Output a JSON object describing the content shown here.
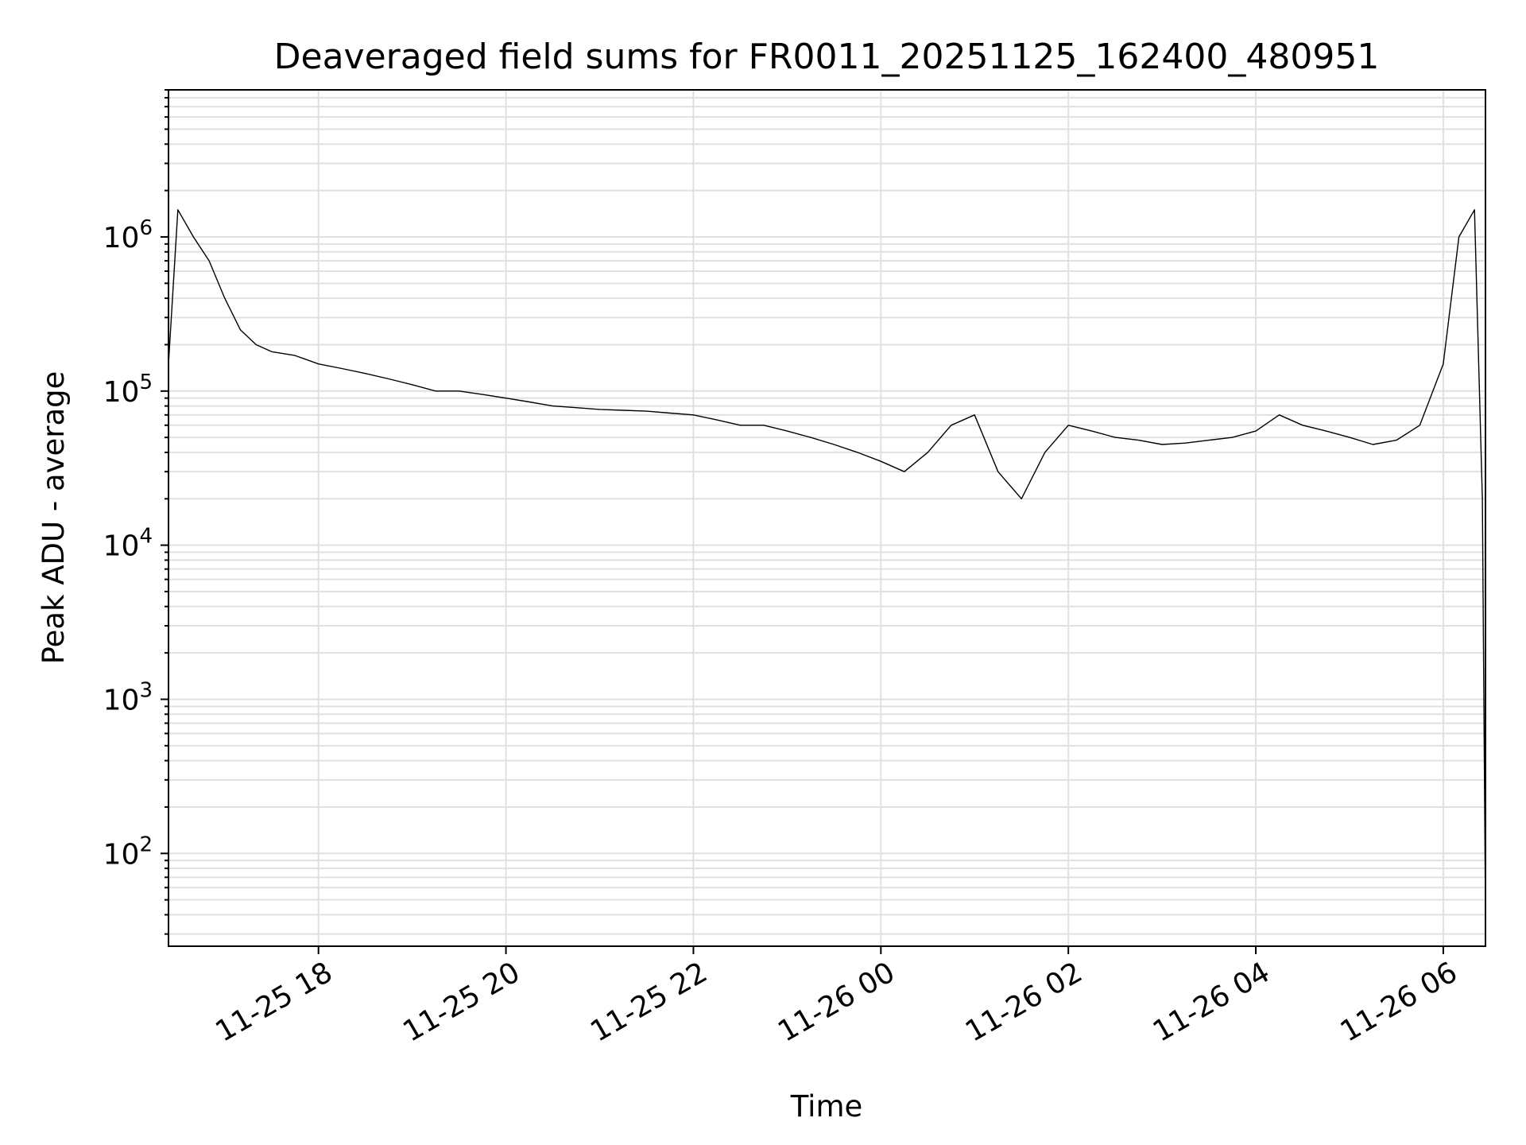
{
  "chart_data": {
    "type": "line",
    "title": "Deaveraged field sums for FR0011_20251125_162400_480951",
    "xlabel": "Time",
    "ylabel": "Peak ADU - average",
    "yscale": "log",
    "ylim": [
      25,
      9000000
    ],
    "xlim": [
      "11-25 16:24",
      "11-26 06:27"
    ],
    "grid": true,
    "line_color": "#000000",
    "grid_color": "#e0e0e0",
    "x_ticks": [
      "11-25 18",
      "11-25 20",
      "11-25 22",
      "11-26 00",
      "11-26 02",
      "11-26 04",
      "11-26 06"
    ],
    "y_ticks": [
      {
        "base": "10",
        "exp": "2",
        "value": 100
      },
      {
        "base": "10",
        "exp": "3",
        "value": 1000
      },
      {
        "base": "10",
        "exp": "4",
        "value": 10000
      },
      {
        "base": "10",
        "exp": "5",
        "value": 100000
      },
      {
        "base": "10",
        "exp": "6",
        "value": 1000000
      }
    ],
    "series": [
      {
        "x": [
          "11-25 16:24",
          "11-25 16:30",
          "11-25 16:40",
          "11-25 16:50",
          "11-25 17:00",
          "11-25 17:10",
          "11-25 17:20",
          "11-25 17:30",
          "11-25 17:45",
          "11-25 18:00",
          "11-25 18:15",
          "11-25 18:30",
          "11-25 18:45",
          "11-25 19:00",
          "11-25 19:15",
          "11-25 19:30",
          "11-25 19:45",
          "11-25 20:00",
          "11-25 20:15",
          "11-25 20:30",
          "11-25 20:45",
          "11-25 21:00",
          "11-25 21:15",
          "11-25 21:30",
          "11-25 21:45",
          "11-25 22:00",
          "11-25 22:15",
          "11-25 22:30",
          "11-25 22:45",
          "11-25 23:00",
          "11-25 23:15",
          "11-25 23:30",
          "11-25 23:45",
          "11-26 00:00",
          "11-26 00:15",
          "11-26 00:30",
          "11-26 00:45",
          "11-26 01:00",
          "11-26 01:15",
          "11-26 01:30",
          "11-26 01:45",
          "11-26 02:00",
          "11-26 02:15",
          "11-26 02:30",
          "11-26 02:45",
          "11-26 03:00",
          "11-26 03:15",
          "11-26 03:30",
          "11-26 03:45",
          "11-26 04:00",
          "11-26 04:15",
          "11-26 04:30",
          "11-26 04:45",
          "11-26 05:00",
          "11-26 05:15",
          "11-26 05:30",
          "11-26 05:45",
          "11-26 06:00",
          "11-26 06:10",
          "11-26 06:20",
          "11-26 06:25",
          "11-26 06:27"
        ],
        "y": [
          150000,
          1500000,
          1000000,
          700000,
          400000,
          250000,
          200000,
          180000,
          170000,
          150000,
          140000,
          130000,
          120000,
          110000,
          100000,
          100000,
          95000,
          90000,
          85000,
          80000,
          78000,
          76000,
          75000,
          74000,
          72000,
          70000,
          65000,
          60000,
          60000,
          55000,
          50000,
          45000,
          40000,
          35000,
          30000,
          40000,
          60000,
          70000,
          30000,
          20000,
          40000,
          60000,
          55000,
          50000,
          48000,
          45000,
          46000,
          48000,
          50000,
          55000,
          70000,
          60000,
          55000,
          50000,
          45000,
          48000,
          60000,
          150000,
          1000000,
          1500000,
          20000,
          40
        ]
      }
    ]
  }
}
